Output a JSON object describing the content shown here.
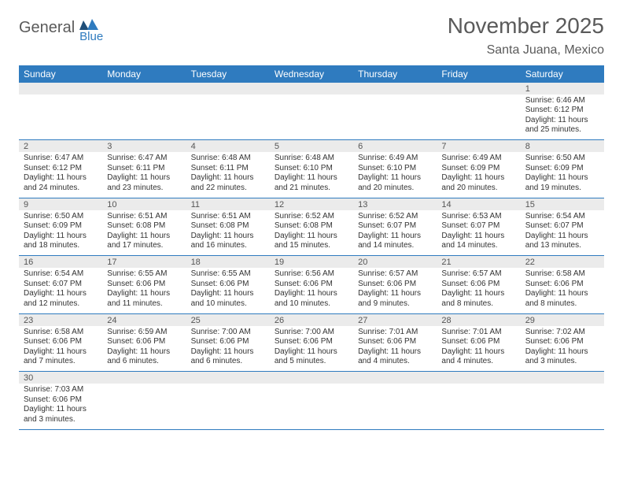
{
  "brand": {
    "word1": "General",
    "word2": "Blue"
  },
  "title": "November 2025",
  "location": "Santa Juana, Mexico",
  "colors": {
    "header_bg": "#2f7bbf",
    "header_text": "#ffffff",
    "daynum_bg": "#ebebeb",
    "rule": "#2f7bbf",
    "text": "#333333",
    "muted": "#5a5a5a"
  },
  "weekdays": [
    "Sunday",
    "Monday",
    "Tuesday",
    "Wednesday",
    "Thursday",
    "Friday",
    "Saturday"
  ],
  "weeks": [
    [
      null,
      null,
      null,
      null,
      null,
      null,
      {
        "n": 1,
        "sunrise": "6:46 AM",
        "sunset": "6:12 PM",
        "daylight": "11 hours and 25 minutes."
      }
    ],
    [
      {
        "n": 2,
        "sunrise": "6:47 AM",
        "sunset": "6:12 PM",
        "daylight": "11 hours and 24 minutes."
      },
      {
        "n": 3,
        "sunrise": "6:47 AM",
        "sunset": "6:11 PM",
        "daylight": "11 hours and 23 minutes."
      },
      {
        "n": 4,
        "sunrise": "6:48 AM",
        "sunset": "6:11 PM",
        "daylight": "11 hours and 22 minutes."
      },
      {
        "n": 5,
        "sunrise": "6:48 AM",
        "sunset": "6:10 PM",
        "daylight": "11 hours and 21 minutes."
      },
      {
        "n": 6,
        "sunrise": "6:49 AM",
        "sunset": "6:10 PM",
        "daylight": "11 hours and 20 minutes."
      },
      {
        "n": 7,
        "sunrise": "6:49 AM",
        "sunset": "6:09 PM",
        "daylight": "11 hours and 20 minutes."
      },
      {
        "n": 8,
        "sunrise": "6:50 AM",
        "sunset": "6:09 PM",
        "daylight": "11 hours and 19 minutes."
      }
    ],
    [
      {
        "n": 9,
        "sunrise": "6:50 AM",
        "sunset": "6:09 PM",
        "daylight": "11 hours and 18 minutes."
      },
      {
        "n": 10,
        "sunrise": "6:51 AM",
        "sunset": "6:08 PM",
        "daylight": "11 hours and 17 minutes."
      },
      {
        "n": 11,
        "sunrise": "6:51 AM",
        "sunset": "6:08 PM",
        "daylight": "11 hours and 16 minutes."
      },
      {
        "n": 12,
        "sunrise": "6:52 AM",
        "sunset": "6:08 PM",
        "daylight": "11 hours and 15 minutes."
      },
      {
        "n": 13,
        "sunrise": "6:52 AM",
        "sunset": "6:07 PM",
        "daylight": "11 hours and 14 minutes."
      },
      {
        "n": 14,
        "sunrise": "6:53 AM",
        "sunset": "6:07 PM",
        "daylight": "11 hours and 14 minutes."
      },
      {
        "n": 15,
        "sunrise": "6:54 AM",
        "sunset": "6:07 PM",
        "daylight": "11 hours and 13 minutes."
      }
    ],
    [
      {
        "n": 16,
        "sunrise": "6:54 AM",
        "sunset": "6:07 PM",
        "daylight": "11 hours and 12 minutes."
      },
      {
        "n": 17,
        "sunrise": "6:55 AM",
        "sunset": "6:06 PM",
        "daylight": "11 hours and 11 minutes."
      },
      {
        "n": 18,
        "sunrise": "6:55 AM",
        "sunset": "6:06 PM",
        "daylight": "11 hours and 10 minutes."
      },
      {
        "n": 19,
        "sunrise": "6:56 AM",
        "sunset": "6:06 PM",
        "daylight": "11 hours and 10 minutes."
      },
      {
        "n": 20,
        "sunrise": "6:57 AM",
        "sunset": "6:06 PM",
        "daylight": "11 hours and 9 minutes."
      },
      {
        "n": 21,
        "sunrise": "6:57 AM",
        "sunset": "6:06 PM",
        "daylight": "11 hours and 8 minutes."
      },
      {
        "n": 22,
        "sunrise": "6:58 AM",
        "sunset": "6:06 PM",
        "daylight": "11 hours and 8 minutes."
      }
    ],
    [
      {
        "n": 23,
        "sunrise": "6:58 AM",
        "sunset": "6:06 PM",
        "daylight": "11 hours and 7 minutes."
      },
      {
        "n": 24,
        "sunrise": "6:59 AM",
        "sunset": "6:06 PM",
        "daylight": "11 hours and 6 minutes."
      },
      {
        "n": 25,
        "sunrise": "7:00 AM",
        "sunset": "6:06 PM",
        "daylight": "11 hours and 6 minutes."
      },
      {
        "n": 26,
        "sunrise": "7:00 AM",
        "sunset": "6:06 PM",
        "daylight": "11 hours and 5 minutes."
      },
      {
        "n": 27,
        "sunrise": "7:01 AM",
        "sunset": "6:06 PM",
        "daylight": "11 hours and 4 minutes."
      },
      {
        "n": 28,
        "sunrise": "7:01 AM",
        "sunset": "6:06 PM",
        "daylight": "11 hours and 4 minutes."
      },
      {
        "n": 29,
        "sunrise": "7:02 AM",
        "sunset": "6:06 PM",
        "daylight": "11 hours and 3 minutes."
      }
    ],
    [
      {
        "n": 30,
        "sunrise": "7:03 AM",
        "sunset": "6:06 PM",
        "daylight": "11 hours and 3 minutes."
      },
      null,
      null,
      null,
      null,
      null,
      null
    ]
  ],
  "labels": {
    "sunrise": "Sunrise: ",
    "sunset": "Sunset: ",
    "daylight": "Daylight: "
  }
}
